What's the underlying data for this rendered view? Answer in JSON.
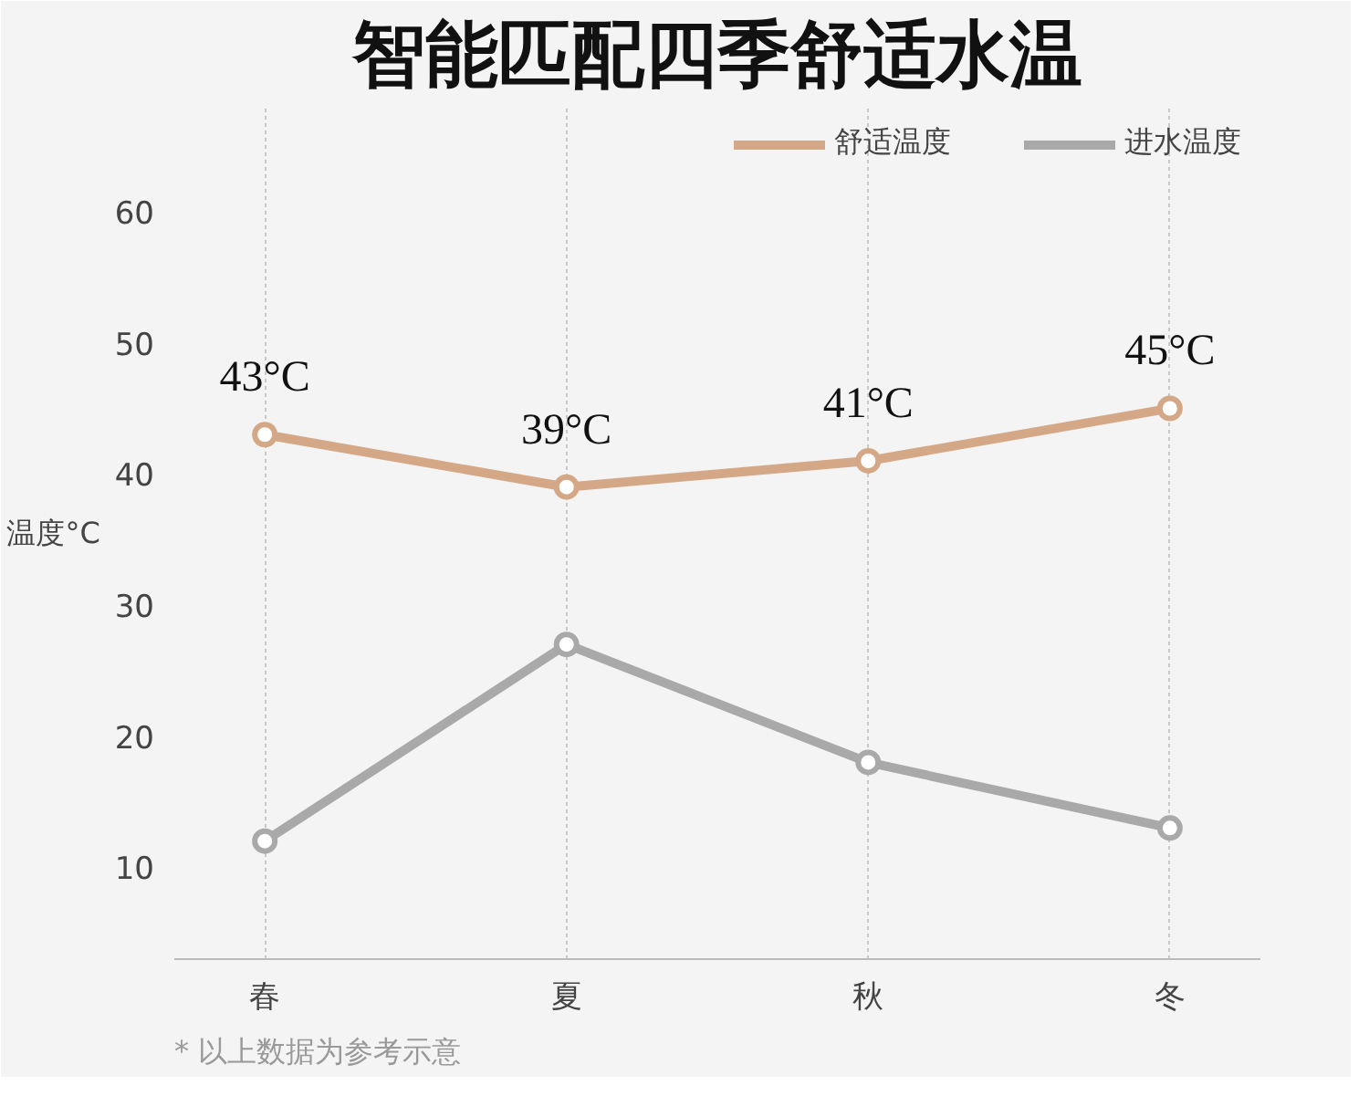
{
  "chart_data": {
    "type": "line",
    "title": "智能匹配四季舒适水温",
    "ylabel": "温度°C",
    "categories": [
      "春",
      "夏",
      "秋",
      "冬"
    ],
    "series": [
      {
        "name": "舒适温度",
        "color": "#d4a886",
        "values": [
          43,
          39,
          41,
          45
        ],
        "value_labels": [
          "43°C",
          "39°C",
          "41°C",
          "45°C"
        ]
      },
      {
        "name": "进水温度",
        "color": "#a9a9a9",
        "values": [
          12,
          27,
          18,
          13
        ]
      }
    ],
    "ylim": [
      3,
      68
    ],
    "yticks": [
      10,
      20,
      30,
      40,
      50,
      60
    ],
    "grid": "x",
    "legend": "top right",
    "marker": "circle",
    "line_style": "solid",
    "annotations": [
      "* 以上数据为参考示意"
    ]
  }
}
